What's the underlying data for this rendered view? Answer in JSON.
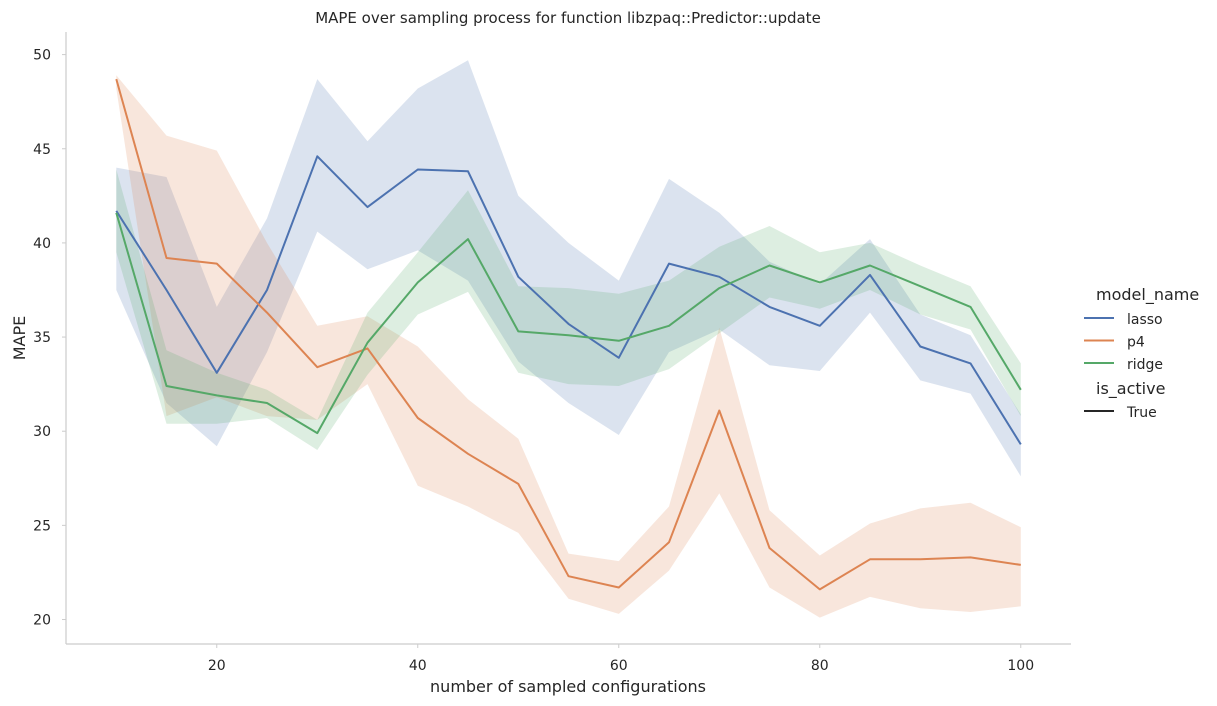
{
  "chart_data": {
    "type": "line",
    "title": "MAPE over sampling process for function libzpaq::Predictor::update",
    "xlabel": "number of sampled configurations",
    "ylabel": "MAPE",
    "xlim": [
      5,
      105
    ],
    "ylim": [
      18.7,
      51.2
    ],
    "x_ticks": [
      20,
      40,
      60,
      80,
      100
    ],
    "y_ticks": [
      20,
      25,
      30,
      35,
      40,
      45,
      50
    ],
    "grid": false,
    "legend": {
      "placement": "right",
      "hue_title": "model_name",
      "style_title": "is_active",
      "style_entries": [
        "True"
      ]
    },
    "x": [
      10,
      15,
      20,
      25,
      30,
      35,
      40,
      45,
      50,
      55,
      60,
      65,
      70,
      75,
      80,
      85,
      90,
      95,
      100
    ],
    "series": [
      {
        "name": "lasso",
        "color": "#4c72b0",
        "values": [
          41.7,
          37.5,
          33.1,
          37.5,
          44.6,
          41.9,
          43.9,
          43.8,
          38.2,
          35.7,
          33.9,
          38.9,
          38.2,
          36.6,
          35.6,
          38.3,
          34.5,
          33.6,
          29.3
        ],
        "lower": [
          37.5,
          31.5,
          29.2,
          34.2,
          40.6,
          38.6,
          39.6,
          38.0,
          33.7,
          31.5,
          29.8,
          34.2,
          35.4,
          33.5,
          33.2,
          36.3,
          32.7,
          32.0,
          27.6
        ],
        "upper": [
          44.0,
          43.5,
          36.6,
          41.3,
          48.7,
          45.4,
          48.2,
          49.7,
          42.5,
          40.0,
          38.0,
          43.4,
          41.6,
          39.0,
          37.8,
          40.2,
          36.2,
          35.1,
          30.9
        ]
      },
      {
        "name": "p4",
        "color": "#dd8452",
        "values": [
          48.7,
          39.2,
          38.9,
          36.3,
          33.4,
          34.4,
          30.7,
          28.8,
          27.2,
          22.3,
          21.7,
          24.1,
          31.1,
          23.8,
          21.6,
          23.2,
          23.2,
          23.3,
          22.9
        ],
        "lower": [
          48.2,
          30.8,
          31.8,
          30.8,
          30.6,
          32.5,
          27.1,
          26.0,
          24.6,
          21.1,
          20.3,
          22.6,
          26.7,
          21.7,
          20.1,
          21.2,
          20.6,
          20.4,
          20.7
        ],
        "upper": [
          48.9,
          45.7,
          44.9,
          40.0,
          35.6,
          36.1,
          34.5,
          31.7,
          29.6,
          23.5,
          23.1,
          26.0,
          35.5,
          25.8,
          23.4,
          25.1,
          25.9,
          26.2,
          24.9
        ]
      },
      {
        "name": "ridge",
        "color": "#55a868",
        "values": [
          41.6,
          32.4,
          31.9,
          31.5,
          29.9,
          34.7,
          37.9,
          40.2,
          35.3,
          35.1,
          34.8,
          35.6,
          37.6,
          38.8,
          37.9,
          38.8,
          37.7,
          36.6,
          32.2
        ],
        "lower": [
          39.5,
          30.4,
          30.4,
          30.7,
          29.0,
          33.0,
          36.2,
          37.4,
          33.1,
          32.5,
          32.4,
          33.3,
          35.2,
          37.1,
          36.5,
          37.5,
          36.2,
          35.4,
          30.8
        ],
        "upper": [
          43.9,
          34.3,
          33.1,
          32.2,
          30.6,
          36.3,
          39.5,
          42.8,
          37.7,
          37.6,
          37.3,
          38.0,
          39.8,
          40.9,
          39.5,
          40.0,
          38.8,
          37.7,
          33.6
        ]
      }
    ]
  }
}
